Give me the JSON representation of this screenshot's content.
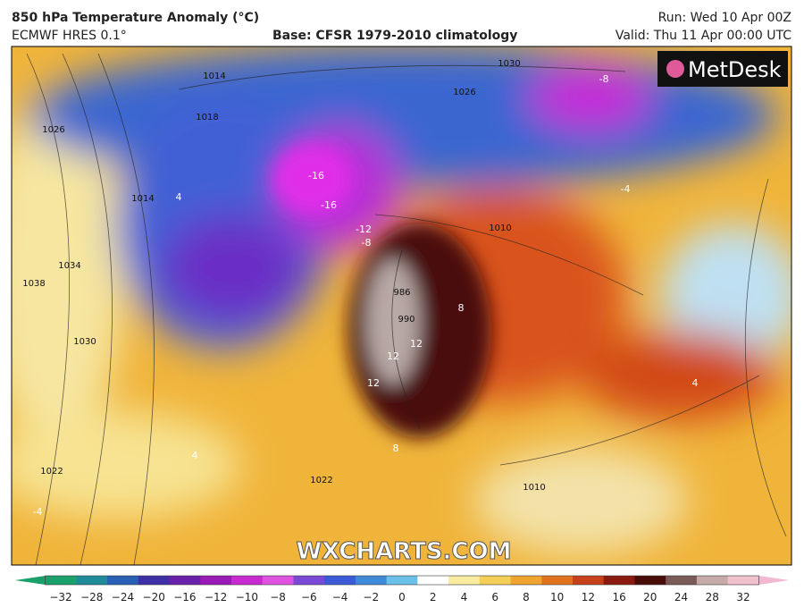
{
  "header": {
    "title": "850 hPa Temperature Anomaly (°C)",
    "model": "ECMWF HRES 0.1°",
    "base": "Base: CFSR 1979-2010 climatology",
    "run": "Run: Wed 10 Apr 00Z",
    "valid": "Valid: Thu 11 Apr 00:00 UTC"
  },
  "logo": "MetDesk",
  "watermark": "WXCHARTS.COM",
  "map_labels": [
    "1030",
    "1026",
    "-8",
    "1018",
    "1014",
    "1026",
    "-16",
    "-16",
    "-12",
    "-8",
    "1038",
    "1034",
    "1030",
    "1022",
    "4",
    "-4",
    "4",
    "986",
    "990",
    "12",
    "12",
    "12",
    "8",
    "8",
    "1010",
    "1014",
    "4",
    "1010",
    "1022",
    "-4"
  ],
  "colorbar": {
    "labels": [
      "−32",
      "−28",
      "−24",
      "−20",
      "−16",
      "−12",
      "−10",
      "−8",
      "−6",
      "−4",
      "−2",
      "0",
      "2",
      "4",
      "6",
      "8",
      "10",
      "12",
      "16",
      "20",
      "24",
      "28",
      "32"
    ]
  }
}
